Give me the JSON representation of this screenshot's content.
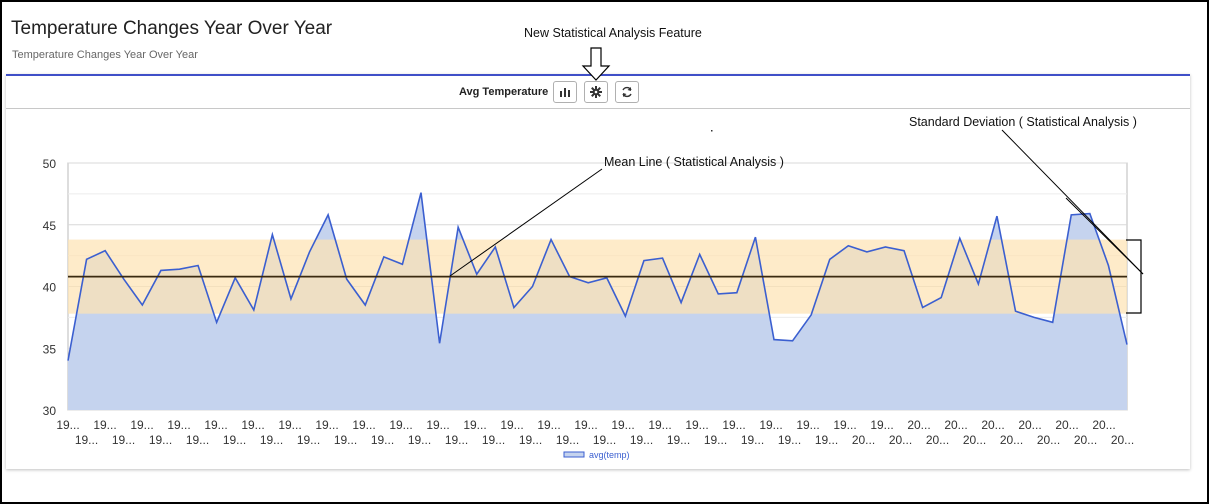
{
  "header": {
    "title": "Temperature Changes Year Over Year",
    "subtitle": "Temperature Changes Year Over Year"
  },
  "annotations": {
    "feature": "New Statistical Analysis Feature",
    "mean_line": "Mean Line ( Statistical Analysis )",
    "std_dev": "Standard Deviation ( Statistical Analysis )"
  },
  "toolbar": {
    "label": "Avg Temperature",
    "buttons": [
      "bar-chart-icon",
      "gear-icon",
      "refresh-icon"
    ]
  },
  "colors": {
    "accent": "#3f4fc8",
    "line": "#3b5fd0",
    "area": "#c5d3ee",
    "band": "#fde3b4",
    "mean": "#3a2a10"
  },
  "chart_data": {
    "type": "area",
    "x_tick_labels_top": [
      "19...",
      "19...",
      "19...",
      "19...",
      "19...",
      "19...",
      "19...",
      "19...",
      "19...",
      "19...",
      "19...",
      "19...",
      "19...",
      "19...",
      "19...",
      "19...",
      "19...",
      "19...",
      "19...",
      "19...",
      "19...",
      "19...",
      "19...",
      "20...",
      "20...",
      "20...",
      "20...",
      "20...",
      "20..."
    ],
    "x_tick_labels_bottom": [
      "19...",
      "19...",
      "19...",
      "19...",
      "19...",
      "19...",
      "19...",
      "19...",
      "19...",
      "19...",
      "19...",
      "19...",
      "19...",
      "19...",
      "19...",
      "19...",
      "19...",
      "19...",
      "19...",
      "19...",
      "19...",
      "20...",
      "20...",
      "20...",
      "20...",
      "20...",
      "20...",
      "20...",
      "20..."
    ],
    "y_ticks": [
      30,
      35,
      40,
      45,
      50
    ],
    "ylim": [
      30,
      50
    ],
    "series": [
      {
        "name": "avg(temp)",
        "values": [
          34.0,
          42.2,
          42.9,
          40.6,
          38.5,
          41.3,
          41.4,
          41.7,
          37.1,
          40.7,
          38.1,
          44.2,
          39.0,
          42.8,
          45.8,
          40.6,
          38.5,
          42.4,
          41.8,
          47.6,
          35.4,
          44.8,
          41.0,
          43.2,
          38.3,
          40.0,
          43.8,
          40.8,
          40.3,
          40.7,
          37.6,
          42.1,
          42.3,
          38.7,
          42.6,
          39.4,
          39.5,
          44.0,
          35.7,
          35.6,
          37.7,
          42.2,
          43.3,
          42.8,
          43.2,
          42.9,
          38.3,
          39.1,
          43.9,
          40.2,
          45.7,
          38.0,
          37.5,
          37.1,
          45.8,
          45.9,
          41.7,
          35.3
        ]
      }
    ],
    "mean": 40.8,
    "std_band": [
      37.8,
      43.8
    ],
    "legend": "bottom",
    "grid": true
  }
}
